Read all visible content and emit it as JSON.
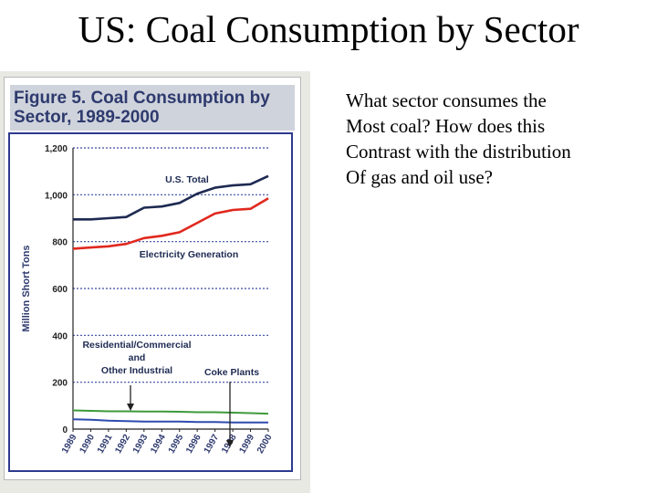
{
  "slide": {
    "title": "US: Coal Consumption by Sector",
    "question_lines": [
      "What sector consumes the",
      "Most coal?  How does this",
      "Contrast with the distribution",
      "Of gas and oil use?"
    ]
  },
  "figure": {
    "title_lines": [
      "Figure 5. Coal Consumption by",
      "Sector, 1989-2000"
    ]
  },
  "chart_data": {
    "type": "line",
    "title": "Figure 5. Coal Consumption by Sector, 1989-2000",
    "xlabel": "",
    "ylabel": "Million Short Tons",
    "x": [
      1989,
      1990,
      1991,
      1992,
      1993,
      1994,
      1995,
      1996,
      1997,
      1998,
      1999,
      2000
    ],
    "x_tick_labels": [
      "1989",
      "1990",
      "1991",
      "1992",
      "1993",
      "1994",
      "1995",
      "1996",
      "1997",
      "1998",
      "1999",
      "2000"
    ],
    "ylim": [
      0,
      1200
    ],
    "y_ticks": [
      0,
      200,
      400,
      600,
      800,
      1000,
      1200
    ],
    "y_tick_labels": [
      "0",
      "200",
      "400",
      "600",
      "800",
      "1,000",
      "1,200"
    ],
    "grid": true,
    "series": [
      {
        "name": "U.S. Total",
        "color": "#1e2a52",
        "values": [
          895,
          895,
          900,
          905,
          945,
          950,
          965,
          1005,
          1030,
          1040,
          1045,
          1080
        ]
      },
      {
        "name": "Electricity Generation",
        "color": "#e0281e",
        "values": [
          770,
          775,
          780,
          790,
          815,
          825,
          840,
          880,
          920,
          935,
          940,
          985
        ]
      },
      {
        "name": "Residential/Commercial and Other Industrial",
        "color": "#3d9a3a",
        "values": [
          80,
          78,
          76,
          76,
          75,
          75,
          74,
          72,
          72,
          70,
          68,
          66
        ]
      },
      {
        "name": "Coke Plants",
        "color": "#2d4bb0",
        "values": [
          42,
          40,
          36,
          34,
          32,
          32,
          32,
          30,
          30,
          28,
          28,
          28
        ]
      }
    ],
    "annotations": [
      {
        "lines": [
          "U.S. Total"
        ]
      },
      {
        "lines": [
          "Electricity Generation"
        ]
      },
      {
        "lines": [
          "Residential/Commercial",
          "and",
          "Other Industrial"
        ]
      },
      {
        "lines": [
          "Coke Plants"
        ]
      }
    ]
  }
}
